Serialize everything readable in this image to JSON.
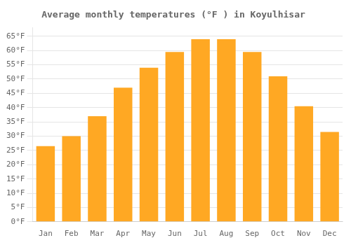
{
  "chart_data": {
    "type": "bar",
    "title": "Average monthly temperatures (°F ) in Koyulhisar",
    "categories": [
      "Jan",
      "Feb",
      "Mar",
      "Apr",
      "May",
      "Jun",
      "Jul",
      "Aug",
      "Sep",
      "Oct",
      "Nov",
      "Dec"
    ],
    "values": [
      26.5,
      30.0,
      37.0,
      47.0,
      54.0,
      59.5,
      64.0,
      64.0,
      59.5,
      51.0,
      40.5,
      31.5
    ],
    "color": "#FFA823",
    "ylim": [
      0,
      68
    ],
    "yticks": [
      {
        "value": 0,
        "label": "0°F"
      },
      {
        "value": 5,
        "label": "5°F"
      },
      {
        "value": 10,
        "label": "10°F"
      },
      {
        "value": 15,
        "label": "15°F"
      },
      {
        "value": 20,
        "label": "20°F"
      },
      {
        "value": 25,
        "label": "25°F"
      },
      {
        "value": 30,
        "label": "30°F"
      },
      {
        "value": 35,
        "label": "35°F"
      },
      {
        "value": 40,
        "label": "40°F"
      },
      {
        "value": 45,
        "label": "45°F"
      },
      {
        "value": 50,
        "label": "50°F"
      },
      {
        "value": 55,
        "label": "55°F"
      },
      {
        "value": 60,
        "label": "60°F"
      },
      {
        "value": 65,
        "label": "65°F"
      }
    ],
    "grid": true
  }
}
